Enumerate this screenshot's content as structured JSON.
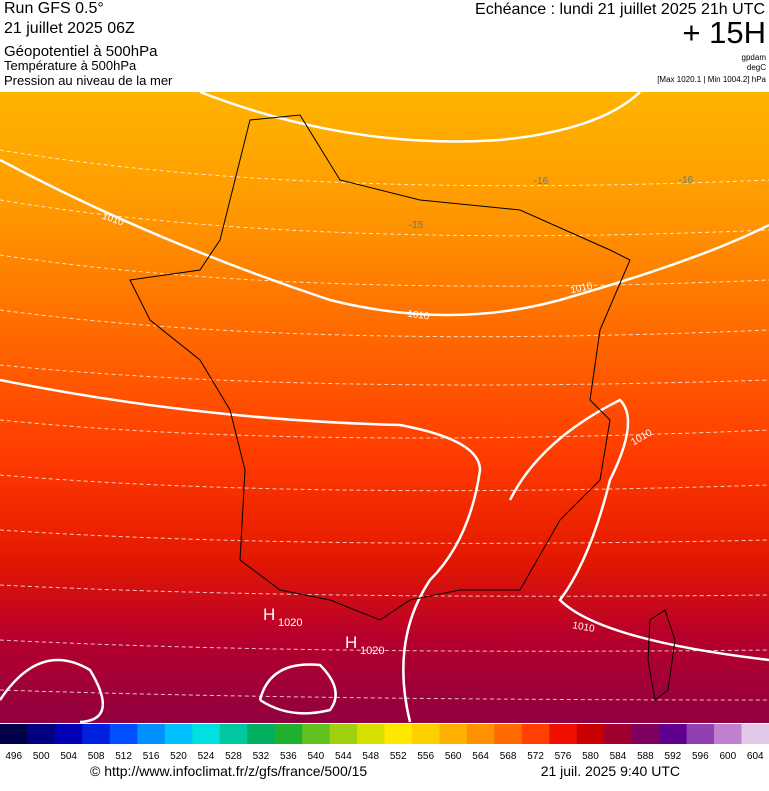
{
  "header": {
    "run": "Run GFS 0.5°",
    "date": "21 juillet 2025 06Z",
    "field1": "Géopotentiel à 500hPa",
    "field2": "Température à 500hPa",
    "field3": "Pression au niveau de la mer",
    "echeance": "Echéance : lundi 21 juillet 2025 21h UTC",
    "lead": "+ 15H",
    "unit1": "gpdam",
    "unit2": "degC",
    "range": "[Max 1020.1 | Min 1004.2] hPa"
  },
  "map": {
    "isobar_labels": [
      1010,
      1010,
      1010,
      1010,
      1010
    ],
    "temp_labels": [
      -16,
      -16,
      -15
    ],
    "highs": [
      {
        "letter": "H",
        "value": 1020
      },
      {
        "letter": "H",
        "value": 1020
      }
    ]
  },
  "legend": {
    "values": [
      496,
      500,
      504,
      508,
      512,
      516,
      520,
      524,
      528,
      532,
      536,
      540,
      544,
      548,
      552,
      556,
      560,
      564,
      568,
      572,
      576,
      580,
      584,
      588,
      592,
      596,
      600,
      604
    ],
    "colors": [
      "#00004a",
      "#000080",
      "#0000b4",
      "#0020e0",
      "#0050ff",
      "#0090ff",
      "#00c0ff",
      "#00e0e0",
      "#00c8a0",
      "#00b060",
      "#20b030",
      "#60c020",
      "#a0d010",
      "#d8e000",
      "#ffe800",
      "#ffd000",
      "#ffb000",
      "#ff9000",
      "#ff6a00",
      "#ff4000",
      "#f01000",
      "#c80000",
      "#a00030",
      "#800060",
      "#600090",
      "#9040b0",
      "#c080d0",
      "#e0c8e8"
    ]
  },
  "footer": {
    "source": "© http://www.infoclimat.fr/z/gfs/france/500/15",
    "timestamp": "21 juil. 2025  9:40 UTC"
  }
}
